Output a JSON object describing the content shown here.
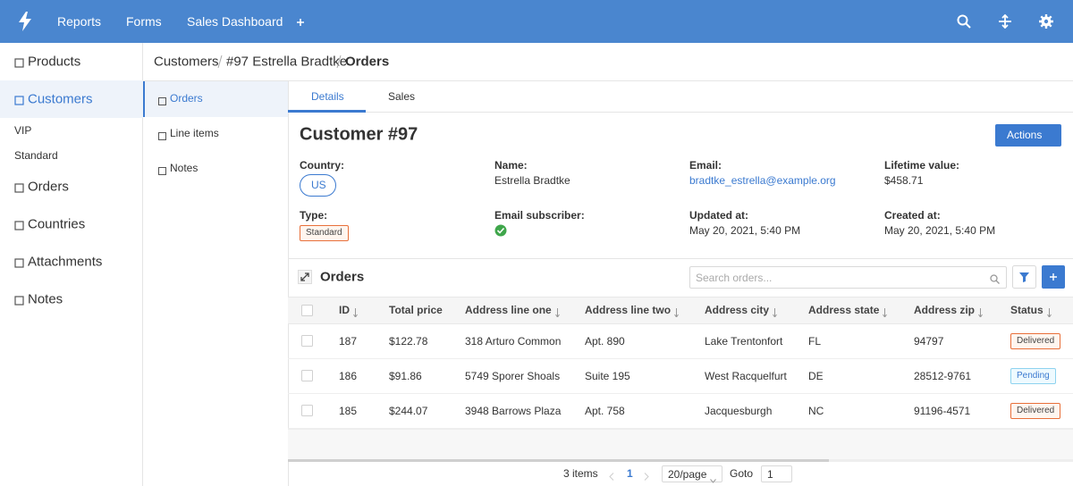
{
  "nav": {
    "items": [
      "Reports",
      "Forms",
      "Sales Dashboard"
    ]
  },
  "sidebar": {
    "items": [
      "Products",
      "Customers",
      "VIP",
      "Standard",
      "Orders",
      "Countries",
      "Attachments",
      "Notes"
    ]
  },
  "breadcrumb": [
    "Customers",
    "#97 Estrella Bradtke",
    "Orders"
  ],
  "subnav": [
    "Orders",
    "Line items",
    "Notes"
  ],
  "tabs": [
    "Details",
    "Sales"
  ],
  "customer": {
    "title": "Customer #97",
    "actions": "Actions",
    "fields": [
      {
        "label": "Country:",
        "value": "US"
      },
      {
        "label": "Name:",
        "value": "Estrella Bradtke"
      },
      {
        "label": "Email:",
        "value": "bradtke_estrella@example.org"
      },
      {
        "label": "Lifetime value:",
        "value": "$458.71"
      },
      {
        "label": "Type:",
        "value": "Standard"
      },
      {
        "label": "Email subscriber:",
        "value": null
      },
      {
        "label": "Updated at:",
        "value": "May 20, 2021, 5:40 PM"
      },
      {
        "label": "Created at:",
        "value": "May 20, 2021, 5:40 PM"
      }
    ]
  },
  "orders": {
    "title": "Orders",
    "search_placeholder": "Search orders...",
    "columns": [
      "ID",
      "Total price",
      "Address line one",
      "Address line two",
      "Address city",
      "Address state",
      "Address zip",
      "Status"
    ],
    "rows": [
      [
        "187",
        "$122.78",
        "318 Arturo Common",
        "Apt. 890",
        "Lake Trentonfort",
        "FL",
        "94797",
        "Delivered"
      ],
      [
        "186",
        "$91.86",
        "5749 Sporer Shoals",
        "Suite 195",
        "West Racquelfurt",
        "DE",
        "28512-9761",
        "Pending"
      ],
      [
        "185",
        "$244.07",
        "3948 Barrows Plaza",
        "Apt. 758",
        "Jacquesburgh",
        "NC",
        "91196-4571",
        "Delivered"
      ]
    ]
  },
  "pagination": {
    "total": "3 items",
    "page": "1",
    "page_size": "20/page",
    "goto": "Goto",
    "goto_value": "1"
  }
}
